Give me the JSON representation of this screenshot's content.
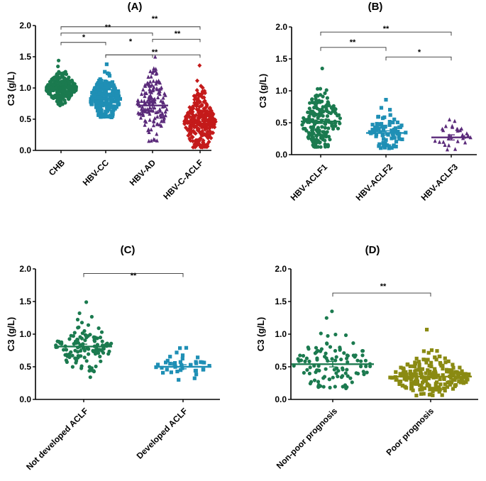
{
  "chart_data": [
    {
      "type": "scatter",
      "panel": "(A)",
      "title": "(A)",
      "ylabel": "C3 (g/L)",
      "ylim": [
        0,
        2.0
      ],
      "yticks": [
        "0.0",
        "0.5",
        "1.0",
        "1.5",
        "2.0"
      ],
      "groups": [
        {
          "name": "CHB",
          "color": "#1b7a4f",
          "marker": "circle",
          "n": 220,
          "mean": 1.0,
          "sd": 0.12,
          "min": 0.72,
          "max": 1.44
        },
        {
          "name": "HBV-CC",
          "color": "#1f8fb5",
          "marker": "square",
          "n": 200,
          "mean": 0.83,
          "sd": 0.17,
          "min": 0.53,
          "max": 1.38
        },
        {
          "name": "HBV-AD",
          "color": "#5a2a7a",
          "marker": "triangle",
          "n": 150,
          "mean": 0.72,
          "sd": 0.27,
          "min": 0.15,
          "max": 1.5
        },
        {
          "name": "HBV-C-ACLF",
          "color": "#c41a1a",
          "marker": "diamond",
          "n": 300,
          "mean": 0.43,
          "sd": 0.24,
          "min": 0.05,
          "max": 1.36
        }
      ],
      "comparisons": [
        {
          "from": 0,
          "to": 3,
          "label": "**",
          "y": 1.98
        },
        {
          "from": 0,
          "to": 2,
          "label": "**",
          "y": 1.88
        },
        {
          "from": 2,
          "to": 3,
          "label": "**",
          "y": 1.78
        },
        {
          "from": 0,
          "to": 1,
          "label": "*",
          "y": 1.73
        },
        {
          "from": 1,
          "to": 2,
          "label": "*",
          "y": 1.53
        },
        {
          "from": 1,
          "to": 3,
          "label": "**",
          "y": 1.53
        }
      ]
    },
    {
      "type": "scatter",
      "panel": "(B)",
      "title": "(B)",
      "ylabel": "C3 (g/L)",
      "ylim": [
        0,
        2.0
      ],
      "yticks": [
        "0.0",
        "0.5",
        "1.0",
        "1.5",
        "2.0"
      ],
      "groups": [
        {
          "name": "HBV-ACLF1",
          "color": "#1b7a4f",
          "marker": "circle",
          "n": 200,
          "mean": 0.52,
          "sd": 0.22,
          "min": 0.12,
          "max": 1.35
        },
        {
          "name": "HBV-ACLF2",
          "color": "#1f8fb5",
          "marker": "square",
          "n": 80,
          "mean": 0.34,
          "sd": 0.15,
          "min": 0.1,
          "max": 0.86
        },
        {
          "name": "HBV-ACLF3",
          "color": "#5a2a7a",
          "marker": "triangle",
          "n": 30,
          "mean": 0.27,
          "sd": 0.11,
          "min": 0.08,
          "max": 0.55
        }
      ],
      "comparisons": [
        {
          "from": 0,
          "to": 2,
          "label": "**",
          "y": 1.92
        },
        {
          "from": 0,
          "to": 1,
          "label": "**",
          "y": 1.68
        },
        {
          "from": 1,
          "to": 2,
          "label": "*",
          "y": 1.53
        }
      ]
    },
    {
      "type": "scatter",
      "panel": "(C)",
      "title": "(C)",
      "ylabel": "C3 (g/L)",
      "ylim": [
        0,
        2.0
      ],
      "yticks": [
        "0.0",
        "0.5",
        "1.0",
        "1.5",
        "2.0"
      ],
      "groups": [
        {
          "name": "Not developed ACLF",
          "color": "#1b7a4f",
          "marker": "circle",
          "n": 120,
          "mean": 0.81,
          "sd": 0.2,
          "min": 0.34,
          "max": 1.49
        },
        {
          "name": "Developed ACLF",
          "color": "#1f8fb5",
          "marker": "square",
          "n": 40,
          "mean": 0.5,
          "sd": 0.1,
          "min": 0.3,
          "max": 0.79
        }
      ],
      "comparisons": [
        {
          "from": 0,
          "to": 1,
          "label": "**",
          "y": 1.93
        }
      ]
    },
    {
      "type": "scatter",
      "panel": "(D)",
      "title": "(D)",
      "ylabel": "C3 (g/L)",
      "ylim": [
        0,
        2.0
      ],
      "yticks": [
        "0.0",
        "0.5",
        "1.0",
        "1.5",
        "2.0"
      ],
      "groups": [
        {
          "name": "Non-poor prognosis",
          "color": "#1b7a4f",
          "marker": "circle",
          "n": 110,
          "mean": 0.54,
          "sd": 0.22,
          "min": 0.17,
          "max": 1.35
        },
        {
          "name": "Poor prognosis",
          "color": "#8a8a12",
          "marker": "square",
          "n": 220,
          "mean": 0.35,
          "sd": 0.15,
          "min": 0.06,
          "max": 1.07
        }
      ],
      "comparisons": [
        {
          "from": 0,
          "to": 1,
          "label": "**",
          "y": 1.63
        }
      ]
    }
  ]
}
